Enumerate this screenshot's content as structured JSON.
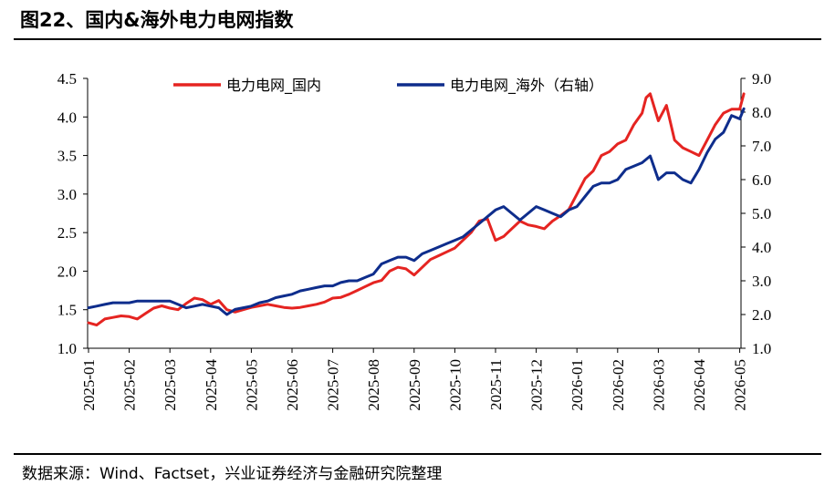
{
  "title": "图22、国内&海外电力电网指数",
  "source": "数据来源：Wind、Factset，兴业证券经济与金融研究院整理",
  "colors": {
    "domestic": "#E52421",
    "overseas": "#0E2D8C"
  },
  "chart_data": {
    "type": "line",
    "title": "",
    "xlabel": "",
    "ylabel": "",
    "ylim_left": [
      1.0,
      4.5
    ],
    "ylim_right": [
      1.0,
      9.0
    ],
    "left_ticks": [
      "1.0",
      "1.5",
      "2.0",
      "2.5",
      "3.0",
      "3.5",
      "4.0",
      "4.5"
    ],
    "right_ticks": [
      "1.0",
      "2.0",
      "3.0",
      "4.0",
      "5.0",
      "6.0",
      "7.0",
      "8.0",
      "9.0"
    ],
    "categories": [
      "2025-01",
      "2025-02",
      "2025-03",
      "2025-04",
      "2025-05",
      "2025-06",
      "2025-07",
      "2025-08",
      "2025-09",
      "2025-10",
      "2025-11",
      "2025-12",
      "2026-01",
      "2026-02",
      "2026-03",
      "2026-04",
      "2026-05"
    ],
    "legend_position": "top",
    "grid": false,
    "series": [
      {
        "name": "电力电网_国内",
        "axis": "left",
        "color": "#E52421",
        "x": [
          0,
          0.2,
          0.4,
          0.6,
          0.8,
          1.0,
          1.2,
          1.4,
          1.6,
          1.8,
          2.0,
          2.2,
          2.4,
          2.6,
          2.8,
          3.0,
          3.2,
          3.4,
          3.6,
          3.8,
          4.0,
          4.2,
          4.4,
          4.6,
          4.8,
          5.0,
          5.2,
          5.4,
          5.6,
          5.8,
          6.0,
          6.2,
          6.4,
          6.6,
          6.8,
          7.0,
          7.2,
          7.4,
          7.6,
          7.8,
          8.0,
          8.2,
          8.4,
          8.6,
          8.8,
          9.0,
          9.2,
          9.4,
          9.6,
          9.8,
          10.0,
          10.2,
          10.4,
          10.6,
          10.8,
          11.0,
          11.2,
          11.4,
          11.6,
          11.8,
          12.0,
          12.2,
          12.4,
          12.6,
          12.8,
          13.0,
          13.2,
          13.4,
          13.6,
          13.7,
          13.8,
          14.0,
          14.2,
          14.4,
          14.6,
          14.8,
          15.0,
          15.2,
          15.4,
          15.6,
          15.8,
          16.0,
          16.1
        ],
        "values": [
          1.33,
          1.3,
          1.38,
          1.4,
          1.42,
          1.41,
          1.38,
          1.45,
          1.52,
          1.55,
          1.52,
          1.5,
          1.58,
          1.65,
          1.63,
          1.57,
          1.62,
          1.5,
          1.47,
          1.5,
          1.53,
          1.55,
          1.57,
          1.55,
          1.53,
          1.52,
          1.53,
          1.55,
          1.57,
          1.6,
          1.65,
          1.66,
          1.7,
          1.75,
          1.8,
          1.85,
          1.88,
          2.0,
          2.05,
          2.03,
          1.95,
          2.05,
          2.15,
          2.2,
          2.25,
          2.3,
          2.4,
          2.5,
          2.65,
          2.68,
          2.4,
          2.45,
          2.55,
          2.65,
          2.6,
          2.58,
          2.55,
          2.65,
          2.72,
          2.8,
          3.0,
          3.2,
          3.3,
          3.5,
          3.55,
          3.65,
          3.7,
          3.9,
          4.05,
          4.25,
          4.3,
          3.95,
          4.15,
          3.7,
          3.6,
          3.55,
          3.5,
          3.7,
          3.9,
          4.05,
          4.1,
          4.1,
          4.3
        ]
      },
      {
        "name": "电力电网_海外（右轴）",
        "axis": "right",
        "color": "#0E2D8C",
        "x": [
          0,
          0.2,
          0.4,
          0.6,
          0.8,
          1.0,
          1.2,
          1.4,
          1.6,
          1.8,
          2.0,
          2.2,
          2.4,
          2.6,
          2.8,
          3.0,
          3.2,
          3.4,
          3.6,
          3.8,
          4.0,
          4.2,
          4.4,
          4.6,
          4.8,
          5.0,
          5.2,
          5.4,
          5.6,
          5.8,
          6.0,
          6.2,
          6.4,
          6.6,
          6.8,
          7.0,
          7.2,
          7.4,
          7.6,
          7.8,
          8.0,
          8.2,
          8.4,
          8.6,
          8.8,
          9.0,
          9.2,
          9.4,
          9.6,
          9.8,
          10.0,
          10.2,
          10.4,
          10.6,
          10.8,
          11.0,
          11.2,
          11.4,
          11.6,
          11.8,
          12.0,
          12.2,
          12.4,
          12.6,
          12.8,
          13.0,
          13.2,
          13.4,
          13.6,
          13.8,
          14.0,
          14.2,
          14.4,
          14.6,
          14.8,
          15.0,
          15.2,
          15.4,
          15.6,
          15.8,
          16.0,
          16.1
        ],
        "values": [
          2.2,
          2.25,
          2.3,
          2.35,
          2.35,
          2.35,
          2.4,
          2.4,
          2.4,
          2.4,
          2.4,
          2.3,
          2.2,
          2.25,
          2.3,
          2.25,
          2.2,
          2.0,
          2.15,
          2.2,
          2.25,
          2.35,
          2.4,
          2.5,
          2.55,
          2.6,
          2.7,
          2.75,
          2.8,
          2.85,
          2.85,
          2.95,
          3.0,
          3.0,
          3.1,
          3.2,
          3.5,
          3.6,
          3.7,
          3.7,
          3.6,
          3.8,
          3.9,
          4.0,
          4.1,
          4.2,
          4.3,
          4.5,
          4.7,
          4.9,
          5.1,
          5.2,
          5.0,
          4.8,
          5.0,
          5.2,
          5.1,
          5.0,
          4.9,
          5.1,
          5.2,
          5.5,
          5.8,
          5.9,
          5.9,
          6.0,
          6.3,
          6.4,
          6.5,
          6.7,
          6.0,
          6.2,
          6.2,
          6.0,
          5.9,
          6.3,
          6.8,
          7.2,
          7.4,
          7.9,
          7.8,
          8.1
        ]
      }
    ]
  }
}
